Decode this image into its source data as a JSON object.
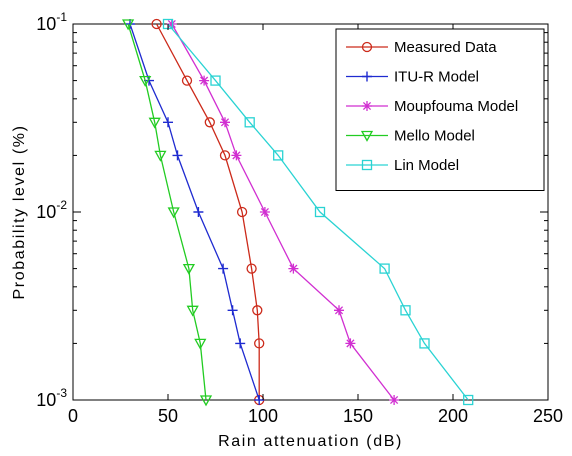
{
  "chart_data": {
    "type": "line",
    "title": "",
    "xlabel": "Rain attenuation (dB)",
    "ylabel": "Probability level (%)",
    "xlim": [
      0,
      250
    ],
    "ylim": [
      0.001,
      0.1
    ],
    "yscale": "log",
    "xticks": [
      "0",
      "50",
      "100",
      "150",
      "200",
      "250"
    ],
    "yticks": [
      {
        "base": "10",
        "exp": "-1",
        "value": 0.1
      },
      {
        "base": "10",
        "exp": "-2",
        "value": 0.01
      },
      {
        "base": "10",
        "exp": "-3",
        "value": 0.001
      }
    ],
    "grid": false,
    "legend_position": "top-right",
    "series": [
      {
        "name": "Measured Data",
        "color": "#cc2a1a",
        "marker": "circle",
        "points": [
          [
            44,
            0.1
          ],
          [
            60,
            0.05
          ],
          [
            72,
            0.03
          ],
          [
            80,
            0.02
          ],
          [
            89,
            0.01
          ],
          [
            94,
            0.005
          ],
          [
            97,
            0.003
          ],
          [
            98,
            0.002
          ],
          [
            98,
            0.001
          ]
        ]
      },
      {
        "name": "ITU-R Model",
        "color": "#1f2bd0",
        "marker": "plus",
        "points": [
          [
            30,
            0.1
          ],
          [
            40,
            0.05
          ],
          [
            50,
            0.03
          ],
          [
            55,
            0.02
          ],
          [
            66,
            0.01
          ],
          [
            79,
            0.005
          ],
          [
            84,
            0.003
          ],
          [
            88,
            0.002
          ],
          [
            98,
            0.001
          ]
        ]
      },
      {
        "name": "Moupfouma Model",
        "color": "#d12fd1",
        "marker": "asterisk",
        "points": [
          [
            52,
            0.1
          ],
          [
            69,
            0.05
          ],
          [
            80,
            0.03
          ],
          [
            86,
            0.02
          ],
          [
            101,
            0.01
          ],
          [
            116,
            0.005
          ],
          [
            140,
            0.003
          ],
          [
            146,
            0.002
          ],
          [
            169,
            0.001
          ]
        ]
      },
      {
        "name": "Mello Model",
        "color": "#22cc22",
        "marker": "triangle-down",
        "points": [
          [
            29,
            0.1
          ],
          [
            38,
            0.05
          ],
          [
            43,
            0.03
          ],
          [
            46,
            0.02
          ],
          [
            53,
            0.01
          ],
          [
            61,
            0.005
          ],
          [
            63,
            0.003
          ],
          [
            67,
            0.002
          ],
          [
            70,
            0.001
          ]
        ]
      },
      {
        "name": "Lin Model",
        "color": "#2ad3d3",
        "marker": "square",
        "points": [
          [
            50,
            0.1
          ],
          [
            75,
            0.05
          ],
          [
            93,
            0.03
          ],
          [
            108,
            0.02
          ],
          [
            130,
            0.01
          ],
          [
            164,
            0.005
          ],
          [
            175,
            0.003
          ],
          [
            185,
            0.002
          ],
          [
            208,
            0.001
          ]
        ]
      }
    ]
  }
}
